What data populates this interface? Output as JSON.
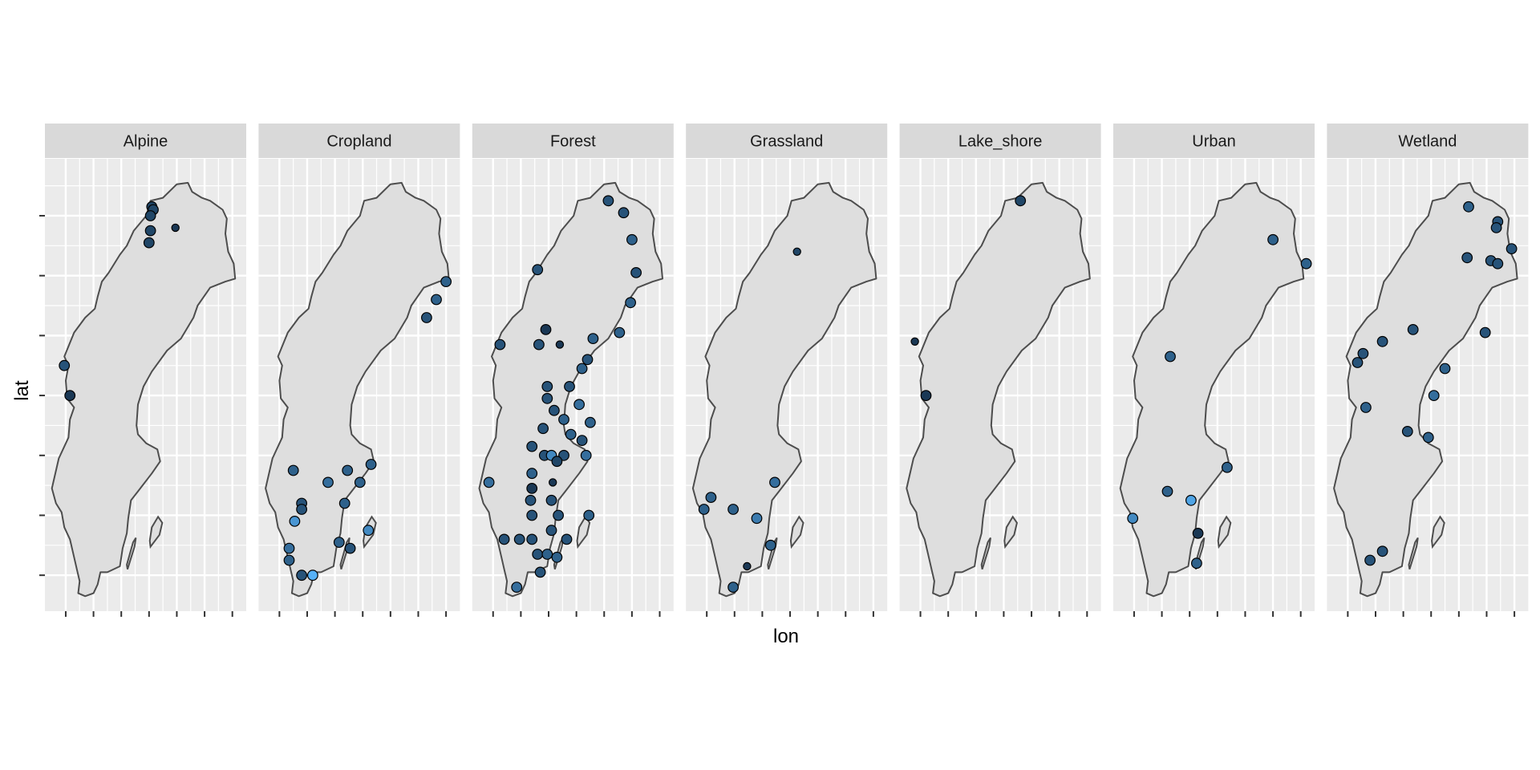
{
  "chart_data": {
    "type": "scatter",
    "xlabel": "lon",
    "ylabel": "lat",
    "x_tick_labels": [],
    "y_tick_labels": [],
    "xlim": [
      10.5,
      25.0
    ],
    "ylim": [
      54.8,
      69.9
    ],
    "grid": true,
    "panels": [
      {
        "name": "Alpine",
        "points": [
          {
            "lon": 18.2,
            "lat": 68.3,
            "size": "m",
            "shade": 0.2
          },
          {
            "lon": 18.3,
            "lat": 68.2,
            "size": "m",
            "shade": 0.2
          },
          {
            "lon": 18.1,
            "lat": 68.0,
            "size": "m",
            "shade": 0.2
          },
          {
            "lon": 18.1,
            "lat": 67.5,
            "size": "m",
            "shade": 0.2
          },
          {
            "lon": 18.0,
            "lat": 67.1,
            "size": "m",
            "shade": 0.2
          },
          {
            "lon": 19.9,
            "lat": 67.6,
            "size": "s",
            "shade": 0.1
          },
          {
            "lon": 11.9,
            "lat": 63.0,
            "size": "m",
            "shade": 0.3
          },
          {
            "lon": 12.3,
            "lat": 62.0,
            "size": "m",
            "shade": 0.1
          }
        ]
      },
      {
        "name": "Cropland",
        "points": [
          {
            "lon": 24.0,
            "lat": 65.8,
            "size": "m",
            "shade": 0.4
          },
          {
            "lon": 23.3,
            "lat": 65.2,
            "size": "m",
            "shade": 0.4
          },
          {
            "lon": 22.6,
            "lat": 64.6,
            "size": "m",
            "shade": 0.3
          },
          {
            "lon": 13.0,
            "lat": 59.5,
            "size": "m",
            "shade": 0.4
          },
          {
            "lon": 15.5,
            "lat": 59.1,
            "size": "m",
            "shade": 0.5
          },
          {
            "lon": 16.9,
            "lat": 59.5,
            "size": "m",
            "shade": 0.4
          },
          {
            "lon": 18.6,
            "lat": 59.7,
            "size": "m",
            "shade": 0.4
          },
          {
            "lon": 17.8,
            "lat": 59.1,
            "size": "m",
            "shade": 0.4
          },
          {
            "lon": 13.6,
            "lat": 58.4,
            "size": "m",
            "shade": 0.3
          },
          {
            "lon": 13.6,
            "lat": 58.2,
            "size": "m",
            "shade": 0.3
          },
          {
            "lon": 16.7,
            "lat": 58.4,
            "size": "m",
            "shade": 0.4
          },
          {
            "lon": 13.1,
            "lat": 57.8,
            "size": "m",
            "shade": 0.8
          },
          {
            "lon": 16.3,
            "lat": 57.1,
            "size": "m",
            "shade": 0.4
          },
          {
            "lon": 17.1,
            "lat": 56.9,
            "size": "m",
            "shade": 0.3
          },
          {
            "lon": 18.4,
            "lat": 57.5,
            "size": "m",
            "shade": 0.7
          },
          {
            "lon": 12.7,
            "lat": 56.9,
            "size": "m",
            "shade": 0.5
          },
          {
            "lon": 12.7,
            "lat": 56.5,
            "size": "m",
            "shade": 0.4
          },
          {
            "lon": 13.6,
            "lat": 56.0,
            "size": "m",
            "shade": 0.3
          },
          {
            "lon": 14.4,
            "lat": 56.0,
            "size": "m",
            "shade": 1.0
          }
        ]
      },
      {
        "name": "Forest",
        "points": [
          {
            "lon": 20.3,
            "lat": 68.5,
            "size": "m",
            "shade": 0.3
          },
          {
            "lon": 21.4,
            "lat": 68.1,
            "size": "m",
            "shade": 0.3
          },
          {
            "lon": 22.0,
            "lat": 67.2,
            "size": "m",
            "shade": 0.4
          },
          {
            "lon": 22.3,
            "lat": 66.1,
            "size": "m",
            "shade": 0.3
          },
          {
            "lon": 15.2,
            "lat": 66.2,
            "size": "m",
            "shade": 0.3
          },
          {
            "lon": 21.9,
            "lat": 65.1,
            "size": "m",
            "shade": 0.4
          },
          {
            "lon": 21.1,
            "lat": 64.1,
            "size": "m",
            "shade": 0.4
          },
          {
            "lon": 15.8,
            "lat": 64.2,
            "size": "m",
            "shade": 0.1
          },
          {
            "lon": 19.2,
            "lat": 63.9,
            "size": "m",
            "shade": 0.4
          },
          {
            "lon": 12.5,
            "lat": 63.7,
            "size": "m",
            "shade": 0.3
          },
          {
            "lon": 15.3,
            "lat": 63.7,
            "size": "m",
            "shade": 0.3
          },
          {
            "lon": 16.8,
            "lat": 63.7,
            "size": "s",
            "shade": 0.1
          },
          {
            "lon": 18.8,
            "lat": 63.2,
            "size": "m",
            "shade": 0.3
          },
          {
            "lon": 18.4,
            "lat": 62.9,
            "size": "m",
            "shade": 0.4
          },
          {
            "lon": 15.9,
            "lat": 62.3,
            "size": "m",
            "shade": 0.3
          },
          {
            "lon": 17.5,
            "lat": 62.3,
            "size": "m",
            "shade": 0.3
          },
          {
            "lon": 15.9,
            "lat": 61.9,
            "size": "m",
            "shade": 0.3
          },
          {
            "lon": 18.2,
            "lat": 61.7,
            "size": "m",
            "shade": 0.5
          },
          {
            "lon": 16.4,
            "lat": 61.5,
            "size": "m",
            "shade": 0.3
          },
          {
            "lon": 17.1,
            "lat": 61.2,
            "size": "m",
            "shade": 0.4
          },
          {
            "lon": 19.0,
            "lat": 61.1,
            "size": "m",
            "shade": 0.4
          },
          {
            "lon": 15.6,
            "lat": 60.9,
            "size": "m",
            "shade": 0.3
          },
          {
            "lon": 17.6,
            "lat": 60.7,
            "size": "m",
            "shade": 0.4
          },
          {
            "lon": 18.4,
            "lat": 60.5,
            "size": "m",
            "shade": 0.3
          },
          {
            "lon": 14.8,
            "lat": 60.3,
            "size": "m",
            "shade": 0.3
          },
          {
            "lon": 15.7,
            "lat": 60.0,
            "size": "m",
            "shade": 0.3
          },
          {
            "lon": 16.2,
            "lat": 60.0,
            "size": "m",
            "shade": 0.7
          },
          {
            "lon": 17.1,
            "lat": 60.0,
            "size": "m",
            "shade": 0.3
          },
          {
            "lon": 18.7,
            "lat": 60.0,
            "size": "m",
            "shade": 0.5
          },
          {
            "lon": 16.6,
            "lat": 59.8,
            "size": "m",
            "shade": 0.2
          },
          {
            "lon": 14.8,
            "lat": 59.4,
            "size": "m",
            "shade": 0.4
          },
          {
            "lon": 16.3,
            "lat": 59.1,
            "size": "s",
            "shade": 0.1
          },
          {
            "lon": 11.7,
            "lat": 59.1,
            "size": "m",
            "shade": 0.5
          },
          {
            "lon": 14.8,
            "lat": 58.9,
            "size": "m",
            "shade": 0.1
          },
          {
            "lon": 14.7,
            "lat": 58.5,
            "size": "m",
            "shade": 0.3
          },
          {
            "lon": 16.2,
            "lat": 58.5,
            "size": "m",
            "shade": 0.3
          },
          {
            "lon": 14.8,
            "lat": 58.0,
            "size": "m",
            "shade": 0.3
          },
          {
            "lon": 16.7,
            "lat": 58.0,
            "size": "m",
            "shade": 0.3
          },
          {
            "lon": 18.9,
            "lat": 58.0,
            "size": "m",
            "shade": 0.4
          },
          {
            "lon": 16.2,
            "lat": 57.5,
            "size": "m",
            "shade": 0.3
          },
          {
            "lon": 14.8,
            "lat": 57.2,
            "size": "m",
            "shade": 0.3
          },
          {
            "lon": 12.8,
            "lat": 57.2,
            "size": "m",
            "shade": 0.3
          },
          {
            "lon": 13.9,
            "lat": 57.2,
            "size": "m",
            "shade": 0.3
          },
          {
            "lon": 17.3,
            "lat": 57.2,
            "size": "m",
            "shade": 0.3
          },
          {
            "lon": 15.2,
            "lat": 56.7,
            "size": "m",
            "shade": 0.3
          },
          {
            "lon": 15.9,
            "lat": 56.7,
            "size": "m",
            "shade": 0.4
          },
          {
            "lon": 16.6,
            "lat": 56.6,
            "size": "m",
            "shade": 0.4
          },
          {
            "lon": 15.4,
            "lat": 56.1,
            "size": "m",
            "shade": 0.3
          },
          {
            "lon": 13.7,
            "lat": 55.6,
            "size": "m",
            "shade": 0.5
          }
        ]
      },
      {
        "name": "Grassland",
        "points": [
          {
            "lon": 18.5,
            "lat": 66.8,
            "size": "s",
            "shade": 0.2
          },
          {
            "lon": 16.9,
            "lat": 59.1,
            "size": "m",
            "shade": 0.5
          },
          {
            "lon": 12.3,
            "lat": 58.6,
            "size": "m",
            "shade": 0.4
          },
          {
            "lon": 11.8,
            "lat": 58.2,
            "size": "m",
            "shade": 0.4
          },
          {
            "lon": 13.9,
            "lat": 58.2,
            "size": "m",
            "shade": 0.4
          },
          {
            "lon": 15.6,
            "lat": 57.9,
            "size": "m",
            "shade": 0.6
          },
          {
            "lon": 16.6,
            "lat": 57.0,
            "size": "m",
            "shade": 0.4
          },
          {
            "lon": 14.9,
            "lat": 56.3,
            "size": "s",
            "shade": 0.1
          },
          {
            "lon": 13.9,
            "lat": 55.6,
            "size": "m",
            "shade": 0.4
          }
        ]
      },
      {
        "name": "Lake_shore",
        "points": [
          {
            "lon": 19.2,
            "lat": 68.5,
            "size": "m",
            "shade": 0.2
          },
          {
            "lon": 11.6,
            "lat": 63.8,
            "size": "s",
            "shade": 0.1
          },
          {
            "lon": 12.4,
            "lat": 62.0,
            "size": "m",
            "shade": 0.1
          }
        ]
      },
      {
        "name": "Urban",
        "points": [
          {
            "lon": 22.0,
            "lat": 67.2,
            "size": "m",
            "shade": 0.4
          },
          {
            "lon": 24.4,
            "lat": 66.4,
            "size": "m",
            "shade": 0.4
          },
          {
            "lon": 14.6,
            "lat": 63.3,
            "size": "m",
            "shade": 0.4
          },
          {
            "lon": 18.7,
            "lat": 59.6,
            "size": "m",
            "shade": 0.4
          },
          {
            "lon": 14.4,
            "lat": 58.8,
            "size": "m",
            "shade": 0.4
          },
          {
            "lon": 16.1,
            "lat": 58.5,
            "size": "m",
            "shade": 0.9
          },
          {
            "lon": 11.9,
            "lat": 57.9,
            "size": "m",
            "shade": 0.7
          },
          {
            "lon": 16.6,
            "lat": 57.4,
            "size": "m",
            "shade": 0.1
          },
          {
            "lon": 16.5,
            "lat": 56.4,
            "size": "m",
            "shade": 0.4
          }
        ]
      },
      {
        "name": "Wetland",
        "points": [
          {
            "lon": 20.7,
            "lat": 68.3,
            "size": "m",
            "shade": 0.4
          },
          {
            "lon": 22.8,
            "lat": 67.8,
            "size": "m",
            "shade": 0.3
          },
          {
            "lon": 22.7,
            "lat": 67.6,
            "size": "m",
            "shade": 0.3
          },
          {
            "lon": 23.8,
            "lat": 66.9,
            "size": "m",
            "shade": 0.3
          },
          {
            "lon": 20.6,
            "lat": 66.6,
            "size": "m",
            "shade": 0.3
          },
          {
            "lon": 22.3,
            "lat": 66.5,
            "size": "m",
            "shade": 0.3
          },
          {
            "lon": 22.8,
            "lat": 66.4,
            "size": "m",
            "shade": 0.3
          },
          {
            "lon": 16.7,
            "lat": 64.2,
            "size": "m",
            "shade": 0.3
          },
          {
            "lon": 21.9,
            "lat": 64.1,
            "size": "m",
            "shade": 0.3
          },
          {
            "lon": 14.5,
            "lat": 63.8,
            "size": "m",
            "shade": 0.3
          },
          {
            "lon": 13.1,
            "lat": 63.4,
            "size": "m",
            "shade": 0.3
          },
          {
            "lon": 12.7,
            "lat": 63.1,
            "size": "m",
            "shade": 0.3
          },
          {
            "lon": 19.0,
            "lat": 62.9,
            "size": "m",
            "shade": 0.4
          },
          {
            "lon": 18.2,
            "lat": 62.0,
            "size": "m",
            "shade": 0.5
          },
          {
            "lon": 13.3,
            "lat": 61.6,
            "size": "m",
            "shade": 0.4
          },
          {
            "lon": 16.3,
            "lat": 60.8,
            "size": "m",
            "shade": 0.3
          },
          {
            "lon": 17.8,
            "lat": 60.6,
            "size": "m",
            "shade": 0.4
          },
          {
            "lon": 14.5,
            "lat": 56.8,
            "size": "m",
            "shade": 0.3
          },
          {
            "lon": 13.6,
            "lat": 56.5,
            "size": "m",
            "shade": 0.3
          }
        ]
      }
    ]
  },
  "colors": {
    "panel_bg": "#ebebeb",
    "strip_bg": "#d9d9d9",
    "land_fill": "#dedede",
    "border": "#4d4d4d",
    "point_dark": "#132b43",
    "point_light": "#56b1f7"
  }
}
